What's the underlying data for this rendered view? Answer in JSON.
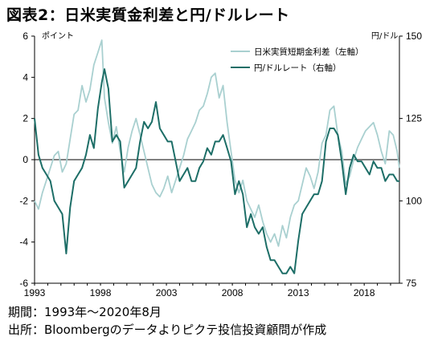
{
  "title": "図表2：日米実質金利差と円/ドルレート",
  "footnotes": {
    "period": "期間：1993年～2020年8月",
    "source": "出所：Bloombergのデータよりピクテ投信投資顧問が作成"
  },
  "colors": {
    "rate_diff": "#a9d0d0",
    "usdjpy": "#1d6e67",
    "axis": "#000000"
  },
  "chart_data": {
    "type": "line",
    "title": "図表2：日米実質金利差と円/ドルレート",
    "xlabel": "",
    "y_left_label": "ポイント",
    "y_right_label": "円/ドル",
    "x_range": [
      1993,
      2020.67
    ],
    "y_left_range": [
      -6,
      6
    ],
    "y_left_ticks": [
      6,
      4,
      2,
      0,
      -2,
      -4,
      -6
    ],
    "y_right_range": [
      75,
      150
    ],
    "y_right_ticks": [
      150,
      125,
      100,
      75
    ],
    "x_ticks": [
      1993,
      1998,
      2003,
      2008,
      2013,
      2018
    ],
    "legend_position": "top-right",
    "series": [
      {
        "name": "日米実質短期金利差（左軸）",
        "axis": "left",
        "color": "#a9d0d0",
        "x": [
          1993.0,
          1993.3,
          1993.6,
          1993.9,
          1994.2,
          1994.5,
          1994.8,
          1995.1,
          1995.4,
          1995.7,
          1996.0,
          1996.3,
          1996.6,
          1996.9,
          1997.2,
          1997.5,
          1997.8,
          1998.1,
          1998.3,
          1998.6,
          1998.9,
          1999.2,
          1999.5,
          1999.8,
          2000.1,
          2000.4,
          2000.7,
          2001.0,
          2001.3,
          2001.6,
          2001.9,
          2002.2,
          2002.5,
          2002.8,
          2003.1,
          2003.4,
          2003.7,
          2004.0,
          2004.3,
          2004.6,
          2004.9,
          2005.2,
          2005.5,
          2005.8,
          2006.1,
          2006.4,
          2006.7,
          2007.0,
          2007.3,
          2007.6,
          2007.9,
          2008.2,
          2008.5,
          2008.8,
          2009.1,
          2009.4,
          2009.7,
          2010.0,
          2010.3,
          2010.6,
          2010.9,
          2011.2,
          2011.5,
          2011.8,
          2012.1,
          2012.4,
          2012.7,
          2013.0,
          2013.3,
          2013.6,
          2013.9,
          2014.2,
          2014.5,
          2014.8,
          2015.1,
          2015.4,
          2015.7,
          2016.0,
          2016.3,
          2016.6,
          2016.9,
          2017.2,
          2017.5,
          2017.8,
          2018.1,
          2018.4,
          2018.7,
          2019.0,
          2019.3,
          2019.6,
          2019.9,
          2020.2,
          2020.5,
          2020.67
        ],
        "values": [
          -2.0,
          -2.4,
          -1.6,
          -1.0,
          -0.4,
          0.2,
          0.4,
          -0.6,
          -0.2,
          1.0,
          2.2,
          2.4,
          3.6,
          2.8,
          3.4,
          4.6,
          5.2,
          5.8,
          3.0,
          1.8,
          0.8,
          1.6,
          0.4,
          -0.6,
          0.6,
          1.4,
          2.0,
          1.2,
          0.4,
          -0.4,
          -1.2,
          -1.6,
          -1.8,
          -1.4,
          -0.8,
          -1.6,
          -1.0,
          -0.4,
          0.2,
          1.0,
          1.4,
          1.8,
          2.4,
          2.6,
          3.2,
          4.0,
          4.2,
          3.0,
          3.6,
          1.8,
          0.4,
          -1.0,
          -1.6,
          -1.0,
          -2.0,
          -2.4,
          -2.8,
          -2.2,
          -3.0,
          -3.6,
          -4.0,
          -3.6,
          -4.2,
          -3.2,
          -3.8,
          -2.8,
          -2.2,
          -2.0,
          -1.2,
          -0.4,
          -0.8,
          -1.4,
          -0.6,
          0.8,
          1.2,
          2.4,
          2.6,
          1.2,
          0.4,
          -1.2,
          -0.8,
          0.0,
          0.6,
          1.0,
          1.4,
          1.6,
          1.8,
          1.2,
          0.4,
          -0.2,
          1.4,
          1.2,
          0.4,
          -0.4
        ]
      },
      {
        "name": "円/ドルレート（右軸）",
        "axis": "right",
        "color": "#1d6e67",
        "x": [
          1993.0,
          1993.3,
          1993.6,
          1993.9,
          1994.2,
          1994.5,
          1994.8,
          1995.1,
          1995.4,
          1995.7,
          1996.0,
          1996.3,
          1996.6,
          1996.9,
          1997.2,
          1997.5,
          1997.8,
          1998.1,
          1998.3,
          1998.6,
          1998.9,
          1999.2,
          1999.5,
          1999.8,
          2000.1,
          2000.4,
          2000.7,
          2001.0,
          2001.3,
          2001.6,
          2001.9,
          2002.2,
          2002.5,
          2002.8,
          2003.1,
          2003.4,
          2003.7,
          2004.0,
          2004.3,
          2004.6,
          2004.9,
          2005.2,
          2005.5,
          2005.8,
          2006.1,
          2006.4,
          2006.7,
          2007.0,
          2007.3,
          2007.6,
          2007.9,
          2008.2,
          2008.5,
          2008.8,
          2009.1,
          2009.4,
          2009.7,
          2010.0,
          2010.3,
          2010.6,
          2010.9,
          2011.2,
          2011.5,
          2011.8,
          2012.1,
          2012.4,
          2012.7,
          2013.0,
          2013.3,
          2013.6,
          2013.9,
          2014.2,
          2014.5,
          2014.8,
          2015.1,
          2015.4,
          2015.7,
          2016.0,
          2016.3,
          2016.6,
          2016.9,
          2017.2,
          2017.5,
          2017.8,
          2018.1,
          2018.4,
          2018.7,
          2019.0,
          2019.3,
          2019.6,
          2019.9,
          2020.2,
          2020.5,
          2020.67
        ],
        "values": [
          125,
          114,
          110,
          108,
          106,
          100,
          98,
          96,
          84,
          98,
          106,
          108,
          110,
          114,
          120,
          116,
          128,
          136,
          140,
          134,
          118,
          120,
          118,
          104,
          106,
          108,
          110,
          118,
          124,
          122,
          124,
          130,
          122,
          120,
          118,
          118,
          112,
          106,
          108,
          110,
          106,
          106,
          110,
          112,
          116,
          114,
          118,
          118,
          120,
          116,
          112,
          102,
          106,
          102,
          92,
          96,
          92,
          90,
          92,
          86,
          82,
          82,
          80,
          78,
          78,
          80,
          78,
          88,
          96,
          98,
          100,
          102,
          102,
          106,
          118,
          122,
          122,
          120,
          112,
          102,
          110,
          114,
          112,
          112,
          110,
          108,
          112,
          110,
          110,
          106,
          108,
          108,
          106,
          106
        ]
      }
    ]
  }
}
